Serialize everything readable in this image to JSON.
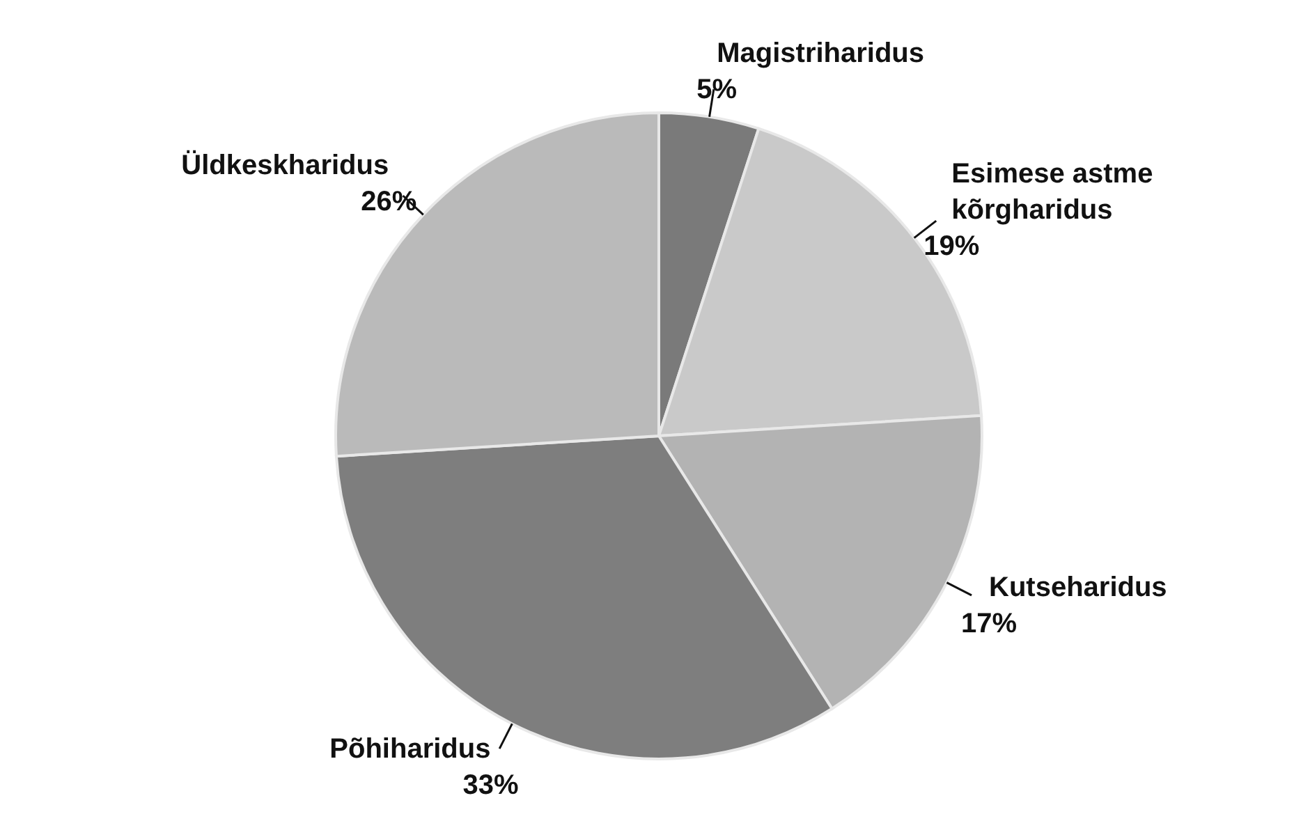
{
  "chart_data": {
    "type": "pie",
    "categories": [
      "Magistriharidus",
      "Esimese astme kõrgharidus",
      "Kutseharidus",
      "Põhiharidus",
      "Üldkeskharidus"
    ],
    "values": [
      5,
      19,
      17,
      33,
      26
    ],
    "colors": [
      "#7a7a7a",
      "#c9c9c9",
      "#b3b3b3",
      "#7e7e7e",
      "#bababa"
    ],
    "value_labels": [
      "5%",
      "19%",
      "17%",
      "33%",
      "26%"
    ],
    "legend": false
  }
}
